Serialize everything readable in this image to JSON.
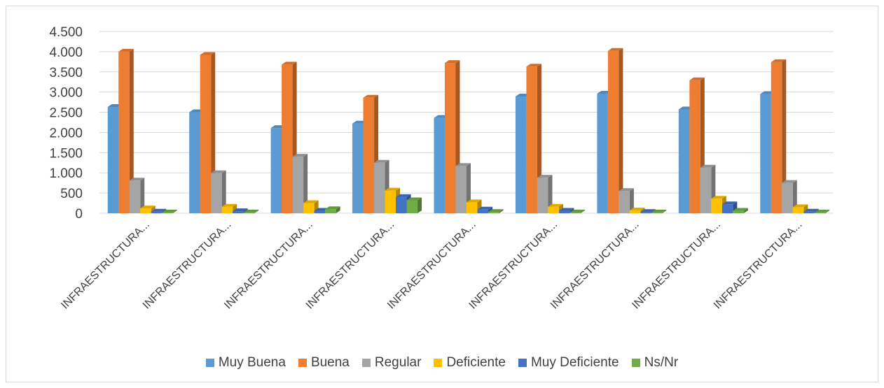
{
  "chart_data": {
    "type": "bar",
    "title": "",
    "xlabel": "",
    "ylabel": "",
    "ylim": [
      0,
      4500
    ],
    "yticks": [
      0,
      500,
      1000,
      1500,
      2000,
      2500,
      3000,
      3500,
      4000,
      4500
    ],
    "ytick_labels": [
      "0",
      "500",
      "1.000",
      "1.500",
      "2.000",
      "2.500",
      "3.000",
      "3.500",
      "4.000",
      "4.500"
    ],
    "grid": true,
    "style": "3d-clustered-column",
    "legend_position": "bottom",
    "categories": [
      "INFRAESTRUCTURA...",
      "INFRAESTRUCTURA...",
      "INFRAESTRUCTURA...",
      "INFRAESTRUCTURA...",
      "INFRAESTRUCTURA...",
      "INFRAESTRUCTURA...",
      "INFRAESTRUCTURA...",
      "INFRAESTRUCTURA...",
      "INFRAESTRUCTURA..."
    ],
    "series": [
      {
        "name": "Muy Buena",
        "color": "#5b9bd5",
        "values": [
          2630,
          2500,
          2110,
          2220,
          2360,
          2890,
          2960,
          2570,
          2950
        ]
      },
      {
        "name": "Buena",
        "color": "#ed7d31",
        "values": [
          4000,
          3920,
          3680,
          2860,
          3720,
          3630,
          4020,
          3290,
          3740
        ]
      },
      {
        "name": "Regular",
        "color": "#a5a5a5",
        "values": [
          810,
          990,
          1400,
          1250,
          1170,
          880,
          550,
          1130,
          750
        ]
      },
      {
        "name": "Deficiente",
        "color": "#ffc000",
        "values": [
          120,
          160,
          250,
          560,
          270,
          160,
          70,
          360,
          150
        ]
      },
      {
        "name": "Muy Deficiente",
        "color": "#4472c4",
        "values": [
          40,
          50,
          60,
          400,
          90,
          60,
          30,
          220,
          40
        ]
      },
      {
        "name": "Ns/Nr",
        "color": "#70ad47",
        "values": [
          20,
          20,
          100,
          320,
          30,
          20,
          20,
          60,
          20
        ]
      }
    ]
  }
}
